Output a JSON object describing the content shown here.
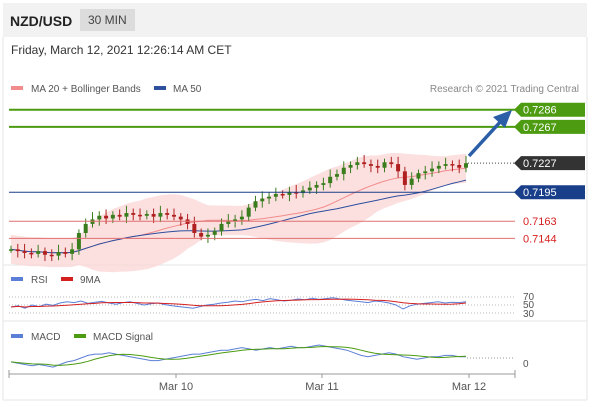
{
  "header": {
    "pair": "NZD/USD",
    "timeframe": "30 MIN"
  },
  "timestamp": "Friday, March 12, 2021 12:26:14 AM CET",
  "credit": "Research © 2021 Trading Central",
  "colors": {
    "bollinger": "#f28b8b",
    "ma50": "#2c4f9e",
    "resistance": "#4c9b10",
    "support_red": "#e07070",
    "pivot": "#1a3f8a",
    "rsi": "#5b7fd6",
    "ma9": "#d62020",
    "macd": "#5b7fd6",
    "macd_signal": "#4c9b10"
  },
  "chart_data": [
    {
      "type": "candlestick",
      "legend": [
        "MA 20 + Bollinger Bands",
        "MA 50"
      ],
      "x_ticks": [
        "Mar 10",
        "Mar 11",
        "Mar 12"
      ],
      "ylim": [
        0.7118,
        0.73
      ],
      "close_path": [
        0.7132,
        0.713,
        0.7128,
        0.7127,
        0.713,
        0.7126,
        0.7125,
        0.7129,
        0.7127,
        0.7132,
        0.715,
        0.716,
        0.7165,
        0.7169,
        0.7166,
        0.717,
        0.7168,
        0.7172,
        0.717,
        0.7169,
        0.7171,
        0.7168,
        0.7172,
        0.717,
        0.7168,
        0.7165,
        0.716,
        0.715,
        0.7146,
        0.7148,
        0.7152,
        0.716,
        0.7163,
        0.7165,
        0.7168,
        0.7178,
        0.7185,
        0.7188,
        0.719,
        0.7193,
        0.7192,
        0.7195,
        0.7194,
        0.7197,
        0.72,
        0.7203,
        0.7205,
        0.7212,
        0.7215,
        0.7222,
        0.7225,
        0.7228,
        0.7226,
        0.7224,
        0.7222,
        0.7228,
        0.7226,
        0.7218,
        0.7203,
        0.721,
        0.7216,
        0.7218,
        0.7221,
        0.7224,
        0.7226,
        0.7225,
        0.7222,
        0.7227
      ],
      "levels": [
        {
          "value": 0.7286,
          "label": "0.7286",
          "kind": "resistance"
        },
        {
          "value": 0.7267,
          "label": "0.7267",
          "kind": "resistance"
        },
        {
          "value": 0.7227,
          "label": "0.7227",
          "kind": "last"
        },
        {
          "value": 0.7195,
          "label": "0.7195",
          "kind": "pivot"
        },
        {
          "value": 0.7163,
          "label": "0.7163",
          "kind": "support"
        },
        {
          "value": 0.7144,
          "label": "0.7144",
          "kind": "support"
        }
      ]
    },
    {
      "type": "line",
      "legend": [
        "RSI",
        "9MA"
      ],
      "y_ticks": [
        "70",
        "50",
        "30"
      ],
      "rsi": [
        45,
        48,
        42,
        50,
        46,
        52,
        49,
        55,
        58,
        56,
        60,
        54,
        57,
        59,
        55,
        52,
        56,
        58,
        54,
        50,
        53,
        55,
        51,
        48,
        46,
        44,
        42,
        46,
        50,
        52,
        55,
        57,
        60,
        58,
        62,
        64,
        61,
        66,
        63,
        60,
        62,
        65,
        63,
        67,
        64,
        66,
        68,
        65,
        62,
        60,
        58,
        56,
        60,
        58,
        55,
        50,
        40,
        48,
        52,
        54,
        56,
        58,
        55,
        57,
        56,
        58
      ]
    },
    {
      "type": "line",
      "legend": [
        "MACD",
        "MACD Signal"
      ],
      "y_ticks": [
        "0"
      ],
      "macd": [
        -3,
        -4,
        -5,
        -6,
        -5,
        -6,
        -7,
        -5,
        -3,
        -2,
        0,
        2,
        3,
        3,
        4,
        3,
        2,
        1,
        0,
        -1,
        -2,
        -2,
        -1,
        0,
        1,
        2,
        3,
        3,
        4,
        5,
        6,
        6,
        7,
        8,
        7,
        6,
        7,
        8,
        7,
        8,
        9,
        8,
        8,
        9,
        10,
        9,
        8,
        7,
        6,
        4,
        2,
        1,
        2,
        3,
        4,
        3,
        1,
        0,
        -1,
        0,
        1,
        1,
        2,
        2,
        1,
        1
      ]
    }
  ]
}
